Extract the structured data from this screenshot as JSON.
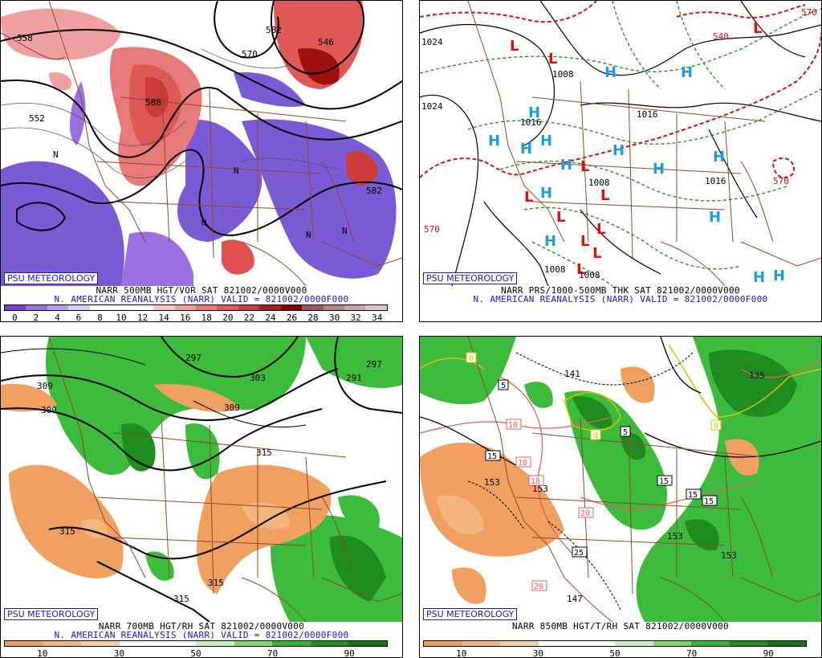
{
  "panels": [
    {
      "id": "tl",
      "badge": "PSU METEOROLOGY",
      "title_line1": "NARR 500MB HGT/VOR SAT 821002/0000V000",
      "title_line2": "N. AMERICAN REANALYSIS (NARR) VALID = 821002/0000F000",
      "colorbar_colors": [
        "#7a3fd4",
        "#9c6fe3",
        "#b9a0ee",
        "#d9cef7",
        "#ffffff",
        "#ffffff",
        "#ffffff",
        "#f7c7c7",
        "#f0a0a0",
        "#e87a7a",
        "#de5858",
        "#cc3b3b",
        "#a81e1e",
        "#800000",
        "#9b5959",
        "#b38585",
        "#c9a5a5",
        "#e0c8c8"
      ],
      "colorbar_ticks": [
        "0",
        "2",
        "4",
        "6",
        "8",
        "10",
        "12",
        "14",
        "16",
        "18",
        "20",
        "22",
        "24",
        "26",
        "28",
        "30",
        "32",
        "34"
      ],
      "labels": [
        "558",
        "570",
        "552",
        "546",
        "582",
        "588",
        "582",
        "N",
        "N",
        "N",
        "N",
        "N"
      ]
    },
    {
      "id": "tr",
      "badge": "PSU METEOROLOGY",
      "title_line1": "NARR PRS/1000-500MB THK SAT 821002/0000V000",
      "title_line2": "N. AMERICAN REANALYSIS (NARR) VALID = 821002/0000F000",
      "labels": [
        "1024",
        "1024",
        "1008",
        "1016",
        "1016",
        "1016",
        "1008",
        "1008",
        "1008",
        "570",
        "570",
        "540",
        "570"
      ]
    },
    {
      "id": "bl",
      "badge": "PSU METEOROLOGY",
      "title_line1": "NARR 700MB HGT/RH SAT 821002/0000V000",
      "title_line2": "N. AMERICAN REANALYSIS (NARR) VALID = 821002/0000F000",
      "colorbar_colors": [
        "#f0a060",
        "#f3b47e",
        "#f7cda6",
        "#ffffff",
        "#ffffff",
        "#c9efc3",
        "#7fd66e",
        "#2eb82e",
        "#1f8f1f",
        "#167016"
      ],
      "colorbar_ticks": [
        "10",
        "30",
        "50",
        "70",
        "90"
      ],
      "labels": [
        "309",
        "309",
        "297",
        "303",
        "309",
        "297",
        "291",
        "315",
        "315",
        "315",
        "315"
      ]
    },
    {
      "id": "br",
      "badge": "PSU METEOROLOGY",
      "title_line1": "NARR 850MB HGT/T/RH SAT 821002/0000V000",
      "title_line2": "",
      "colorbar_colors": [
        "#f0a060",
        "#f3b47e",
        "#f7cda6",
        "#ffffff",
        "#ffffff",
        "#c9efc3",
        "#7fd66e",
        "#2eb82e",
        "#1f8f1f",
        "#167016"
      ],
      "colorbar_ticks": [
        "10",
        "30",
        "50",
        "70",
        "90"
      ],
      "labels": [
        "141",
        "135",
        "153",
        "153",
        "153",
        "153",
        "147",
        "5",
        "5",
        "0",
        "0",
        "0",
        "10",
        "10",
        "10",
        "15",
        "15",
        "15",
        "15",
        "20",
        "20",
        "25"
      ]
    }
  ],
  "colors": {
    "vort_purple": "#7b5ad6",
    "vort_red": "#e05050",
    "vort_dark": "#a01010",
    "rh_green": "#3dbb3d",
    "rh_dark": "#1e8c1e",
    "rh_orange": "#f0a060",
    "border_brown": "#8b4a2b",
    "high_blue": "#1e9ee0",
    "low_red": "#e01010",
    "thk_red": "#d01010",
    "thk_green": "#1a8a1a",
    "temp_pink": "#e06060"
  }
}
